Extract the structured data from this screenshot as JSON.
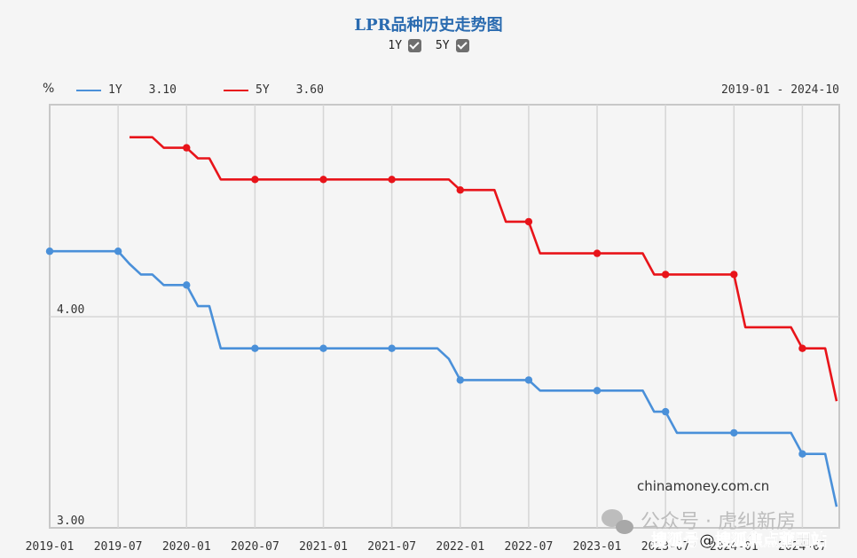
{
  "header": {
    "title": "LPR品种历史走势图",
    "toggles": [
      {
        "label": "1Y",
        "checked": true
      },
      {
        "label": "5Y",
        "checked": true
      }
    ]
  },
  "legend": {
    "unit": "%",
    "items": [
      {
        "label": "1Y",
        "value": "3.10",
        "color": "#4a90d9"
      },
      {
        "label": "5Y",
        "value": "3.60",
        "color": "#e8141a"
      }
    ],
    "range": "2019-01 - 2024-10"
  },
  "footer": {
    "source": "chinamoney.com.cn",
    "watermark_1": "公众号 · 虎纠新房",
    "watermark_2": "搜狐号@搜狐焦点莆田站"
  },
  "chart_data": {
    "type": "line",
    "title": "LPR品种历史走势图",
    "xlabel": "",
    "ylabel": "%",
    "x_ticks": [
      "2019-01",
      "2019-07",
      "2020-01",
      "2020-07",
      "2021-01",
      "2021-07",
      "2022-01",
      "2022-07",
      "2023-01",
      "2023-07",
      "2024-01",
      "2024-07"
    ],
    "y_ticks": [
      3.0,
      4.0
    ],
    "ylim": [
      3.0,
      5.0
    ],
    "xlim": [
      "2019-01",
      "2024-10"
    ],
    "grid": true,
    "legend_position": "top-left",
    "series": [
      {
        "name": "1Y",
        "color": "#4a90d9",
        "latest": 3.1,
        "points": [
          [
            "2019-01",
            4.31
          ],
          [
            "2019-07",
            4.31
          ],
          [
            "2019-08",
            4.25
          ],
          [
            "2019-09",
            4.2
          ],
          [
            "2019-10",
            4.2
          ],
          [
            "2019-11",
            4.15
          ],
          [
            "2019-12",
            4.15
          ],
          [
            "2020-01",
            4.15
          ],
          [
            "2020-02",
            4.05
          ],
          [
            "2020-03",
            4.05
          ],
          [
            "2020-04",
            3.85
          ],
          [
            "2020-07",
            3.85
          ],
          [
            "2021-01",
            3.85
          ],
          [
            "2021-07",
            3.85
          ],
          [
            "2021-11",
            3.85
          ],
          [
            "2021-12",
            3.8
          ],
          [
            "2022-01",
            3.7
          ],
          [
            "2022-07",
            3.7
          ],
          [
            "2022-08",
            3.65
          ],
          [
            "2023-01",
            3.65
          ],
          [
            "2023-05",
            3.65
          ],
          [
            "2023-06",
            3.55
          ],
          [
            "2023-07",
            3.55
          ],
          [
            "2023-08",
            3.45
          ],
          [
            "2024-01",
            3.45
          ],
          [
            "2024-06",
            3.45
          ],
          [
            "2024-07",
            3.35
          ],
          [
            "2024-09",
            3.35
          ],
          [
            "2024-10",
            3.1
          ]
        ]
      },
      {
        "name": "5Y",
        "color": "#e8141a",
        "latest": 3.6,
        "points": [
          [
            "2019-08",
            4.85
          ],
          [
            "2019-10",
            4.85
          ],
          [
            "2019-11",
            4.8
          ],
          [
            "2020-01",
            4.8
          ],
          [
            "2020-02",
            4.75
          ],
          [
            "2020-03",
            4.75
          ],
          [
            "2020-04",
            4.65
          ],
          [
            "2020-07",
            4.65
          ],
          [
            "2021-01",
            4.65
          ],
          [
            "2021-07",
            4.65
          ],
          [
            "2021-12",
            4.65
          ],
          [
            "2022-01",
            4.6
          ],
          [
            "2022-04",
            4.6
          ],
          [
            "2022-05",
            4.45
          ],
          [
            "2022-07",
            4.45
          ],
          [
            "2022-08",
            4.3
          ],
          [
            "2023-01",
            4.3
          ],
          [
            "2023-05",
            4.3
          ],
          [
            "2023-06",
            4.2
          ],
          [
            "2023-07",
            4.2
          ],
          [
            "2024-01",
            4.2
          ],
          [
            "2024-02",
            3.95
          ],
          [
            "2024-06",
            3.95
          ],
          [
            "2024-07",
            3.85
          ],
          [
            "2024-09",
            3.85
          ],
          [
            "2024-10",
            3.6
          ]
        ]
      }
    ]
  }
}
